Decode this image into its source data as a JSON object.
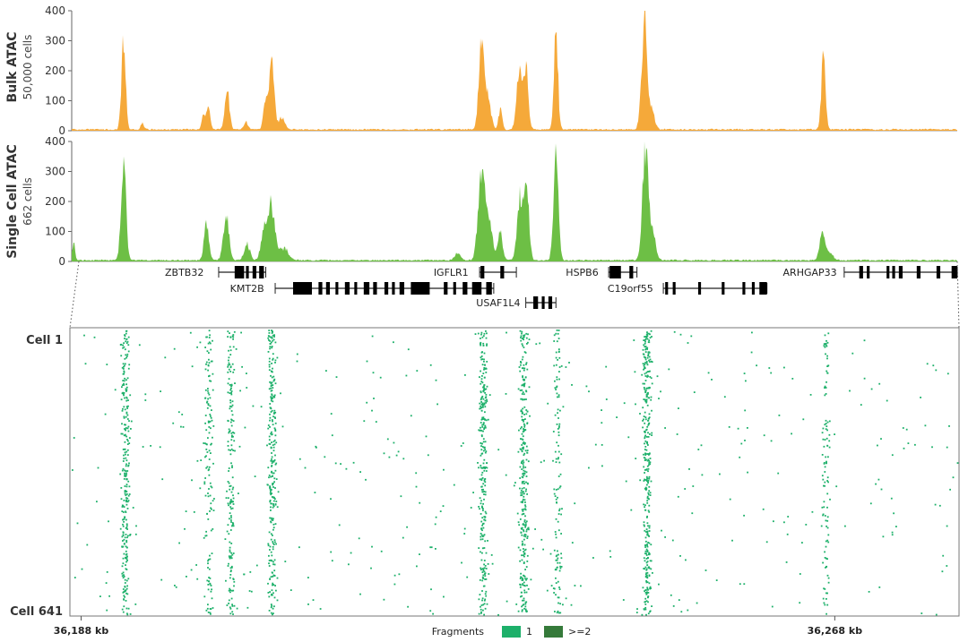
{
  "chart_data": [
    {
      "type": "area",
      "ylabel": "Bulk ATAC",
      "subtitle": "50,000 cells",
      "color": "#f5a93a",
      "ylim": [
        0,
        400
      ],
      "yticks": [
        "400",
        "300",
        "200",
        "100",
        "0"
      ],
      "x_range_kb": [
        36187,
        36281
      ],
      "peaks": [
        {
          "x": 36192.5,
          "y": 290,
          "w": 0.22
        },
        {
          "x": 36194.5,
          "y": 22,
          "w": 0.15
        },
        {
          "x": 36201.0,
          "y": 45,
          "w": 0.2
        },
        {
          "x": 36201.5,
          "y": 70,
          "w": 0.2
        },
        {
          "x": 36203.5,
          "y": 125,
          "w": 0.25
        },
        {
          "x": 36205.5,
          "y": 25,
          "w": 0.2
        },
        {
          "x": 36207.5,
          "y": 90,
          "w": 0.2
        },
        {
          "x": 36208.2,
          "y": 240,
          "w": 0.28
        },
        {
          "x": 36209.3,
          "y": 40,
          "w": 0.3
        },
        {
          "x": 36230.5,
          "y": 305,
          "w": 0.28
        },
        {
          "x": 36231.2,
          "y": 100,
          "w": 0.3
        },
        {
          "x": 36232.5,
          "y": 65,
          "w": 0.2
        },
        {
          "x": 36234.5,
          "y": 180,
          "w": 0.28
        },
        {
          "x": 36235.2,
          "y": 215,
          "w": 0.25
        },
        {
          "x": 36238.4,
          "y": 315,
          "w": 0.22
        },
        {
          "x": 36247.8,
          "y": 360,
          "w": 0.3
        },
        {
          "x": 36248.6,
          "y": 60,
          "w": 0.3
        },
        {
          "x": 36266.8,
          "y": 245,
          "w": 0.22
        }
      ]
    },
    {
      "type": "area",
      "ylabel": "Single Cell ATAC",
      "subtitle": "662 cells",
      "color": "#6dbf45",
      "ylim": [
        0,
        400
      ],
      "yticks": [
        "400",
        "300",
        "200",
        "100",
        "0"
      ],
      "x_range_kb": [
        36187,
        36281
      ],
      "peaks": [
        {
          "x": 36187.2,
          "y": 55,
          "w": 0.15
        },
        {
          "x": 36192.5,
          "y": 350,
          "w": 0.25
        },
        {
          "x": 36201.3,
          "y": 115,
          "w": 0.25
        },
        {
          "x": 36203.4,
          "y": 145,
          "w": 0.3
        },
        {
          "x": 36205.6,
          "y": 55,
          "w": 0.3
        },
        {
          "x": 36207.4,
          "y": 100,
          "w": 0.3
        },
        {
          "x": 36208.2,
          "y": 180,
          "w": 0.35
        },
        {
          "x": 36209.5,
          "y": 40,
          "w": 0.5
        },
        {
          "x": 36228.0,
          "y": 25,
          "w": 0.3
        },
        {
          "x": 36230.5,
          "y": 300,
          "w": 0.35
        },
        {
          "x": 36231.3,
          "y": 130,
          "w": 0.35
        },
        {
          "x": 36232.5,
          "y": 95,
          "w": 0.25
        },
        {
          "x": 36234.6,
          "y": 210,
          "w": 0.3
        },
        {
          "x": 36235.3,
          "y": 230,
          "w": 0.25
        },
        {
          "x": 36238.4,
          "y": 360,
          "w": 0.25
        },
        {
          "x": 36247.9,
          "y": 385,
          "w": 0.3
        },
        {
          "x": 36248.7,
          "y": 90,
          "w": 0.3
        },
        {
          "x": 36266.7,
          "y": 100,
          "w": 0.28
        },
        {
          "x": 36267.5,
          "y": 25,
          "w": 0.3
        }
      ]
    },
    {
      "type": "scatter",
      "ylabel_top": "Cell 1",
      "ylabel_bottom": "Cell 641",
      "cells": 641,
      "xlabels": [
        "36,188 kb",
        "36,268 kb"
      ],
      "x_ticks_kb": [
        36188,
        36268
      ],
      "x_range_kb": [
        36187,
        36281
      ],
      "dot_color": "#1db06a",
      "column_centers_kb": [
        36192.6,
        36201.5,
        36203.8,
        36208.2,
        36230.6,
        36234.9,
        36238.5,
        36248.0,
        36267.0
      ],
      "column_density": [
        260,
        130,
        170,
        260,
        270,
        300,
        120,
        330,
        100
      ],
      "legend": {
        "title": "Fragments",
        "items": [
          {
            "label": "1",
            "color": "#1db06a"
          },
          {
            "label": ">=2",
            "color": "#357a3a"
          }
        ]
      }
    }
  ],
  "genes": [
    {
      "name": "ZBTB32",
      "label_x_kb": 36201.4,
      "row": 0,
      "start": 36202.6,
      "end": 36207.6,
      "exons": [
        [
          36204.3,
          36205.3
        ],
        [
          36205.5,
          36205.8
        ],
        [
          36206.2,
          36206.6
        ],
        [
          36206.9,
          36207.4
        ]
      ]
    },
    {
      "name": "KMT2B",
      "label_x_kb": 36207.8,
      "row": 1,
      "start": 36208.6,
      "end": 36231.8,
      "exons": [
        [
          36210.5,
          36212.5
        ],
        [
          36213.2,
          36213.6
        ],
        [
          36214.0,
          36214.4
        ],
        [
          36215.0,
          36215.3
        ],
        [
          36216.0,
          36216.5
        ],
        [
          36217.0,
          36217.3
        ],
        [
          36218.0,
          36218.6
        ],
        [
          36219.0,
          36219.4
        ],
        [
          36220.2,
          36220.6
        ],
        [
          36221.0,
          36221.3
        ],
        [
          36221.8,
          36222.3
        ],
        [
          36223.0,
          36225.0
        ],
        [
          36226.5,
          36226.9
        ],
        [
          36227.5,
          36227.8
        ],
        [
          36228.5,
          36229.0
        ],
        [
          36229.5,
          36230.5
        ],
        [
          36231.0,
          36231.6
        ]
      ]
    },
    {
      "name": "IGFLR1",
      "label_x_kb": 36229.5,
      "row": 0,
      "start": 36230.3,
      "end": 36234.2,
      "exons": [
        [
          36230.4,
          36230.8
        ],
        [
          36232.5,
          36232.9
        ]
      ]
    },
    {
      "name": "USAF1L4",
      "label_x_kb": 36235.0,
      "row": 2,
      "start": 36235.2,
      "end": 36238.4,
      "exons": [
        [
          36236.0,
          36236.5
        ],
        [
          36236.9,
          36237.2
        ],
        [
          36237.6,
          36238.0
        ]
      ]
    },
    {
      "name": "HSPB6",
      "label_x_kb": 36243.3,
      "row": 0,
      "start": 36244.0,
      "end": 36247.0,
      "exons": [
        [
          36244.1,
          36245.3
        ],
        [
          36246.2,
          36246.6
        ]
      ]
    },
    {
      "name": "C19orf55",
      "label_x_kb": 36249.1,
      "row": 1,
      "start": 36249.8,
      "end": 36260.8,
      "exons": [
        [
          36250.0,
          36250.3
        ],
        [
          36250.8,
          36251.1
        ],
        [
          36253.5,
          36253.8
        ],
        [
          36256.0,
          36256.3
        ],
        [
          36258.2,
          36258.5
        ],
        [
          36259.2,
          36259.5
        ],
        [
          36260.0,
          36260.8
        ]
      ]
    },
    {
      "name": "ARHGAP33",
      "label_x_kb": 36268.6,
      "row": 0,
      "start": 36269.0,
      "end": 36281.0,
      "exons": [
        [
          36270.6,
          36271.0
        ],
        [
          36271.4,
          36271.7
        ],
        [
          36273.5,
          36273.8
        ],
        [
          36274.1,
          36274.4
        ],
        [
          36274.8,
          36275.2
        ],
        [
          36276.7,
          36277.1
        ],
        [
          36278.8,
          36279.2
        ],
        [
          36280.4,
          36281.0
        ]
      ]
    }
  ]
}
